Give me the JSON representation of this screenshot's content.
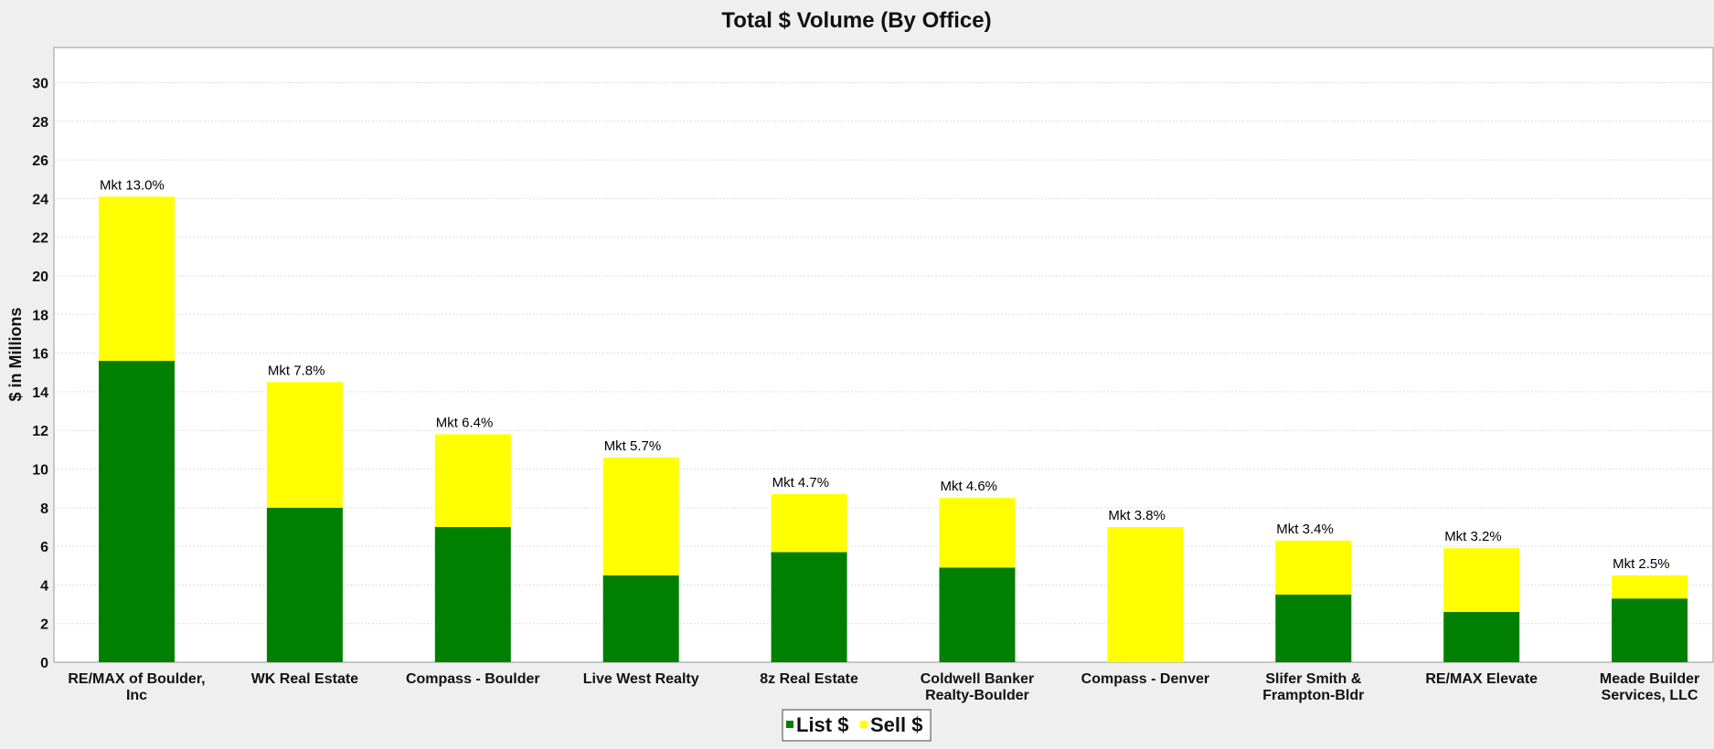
{
  "chart_data": {
    "type": "bar",
    "stacked": true,
    "title": "Total $ Volume (By Office)",
    "xlabel": "",
    "ylabel": "$ in Millions",
    "ylim": [
      0,
      31.5
    ],
    "yticks": [
      0,
      2,
      4,
      6,
      8,
      10,
      12,
      14,
      16,
      18,
      20,
      22,
      24,
      26,
      28,
      30
    ],
    "grid": true,
    "legend_position": "bottom-center",
    "categories": [
      [
        "RE/MAX of Boulder,",
        "Inc"
      ],
      [
        "WK Real Estate"
      ],
      [
        "Compass - Boulder"
      ],
      [
        "Live West Realty"
      ],
      [
        "8z Real Estate"
      ],
      [
        "Coldwell Banker",
        "Realty-Boulder"
      ],
      [
        "Compass - Denver"
      ],
      [
        "Slifer Smith &",
        "Frampton-Bldr"
      ],
      [
        "RE/MAX Elevate"
      ],
      [
        "Meade Builder",
        "Services, LLC"
      ]
    ],
    "series": [
      {
        "name": "List $",
        "color": "#008000",
        "values": [
          15.6,
          8.0,
          7.0,
          4.5,
          5.7,
          4.9,
          0.0,
          3.5,
          2.6,
          3.3
        ]
      },
      {
        "name": "Sell $",
        "color": "#ffff00",
        "values": [
          8.5,
          6.5,
          4.8,
          6.1,
          3.0,
          3.6,
          7.0,
          2.8,
          3.3,
          1.2
        ]
      }
    ],
    "annotations": [
      "Mkt 13.0%",
      "Mkt 7.8%",
      "Mkt 6.4%",
      "Mkt 5.7%",
      "Mkt 4.7%",
      "Mkt 4.6%",
      "Mkt 3.8%",
      "Mkt 3.4%",
      "Mkt 3.2%",
      "Mkt 2.5%"
    ]
  }
}
